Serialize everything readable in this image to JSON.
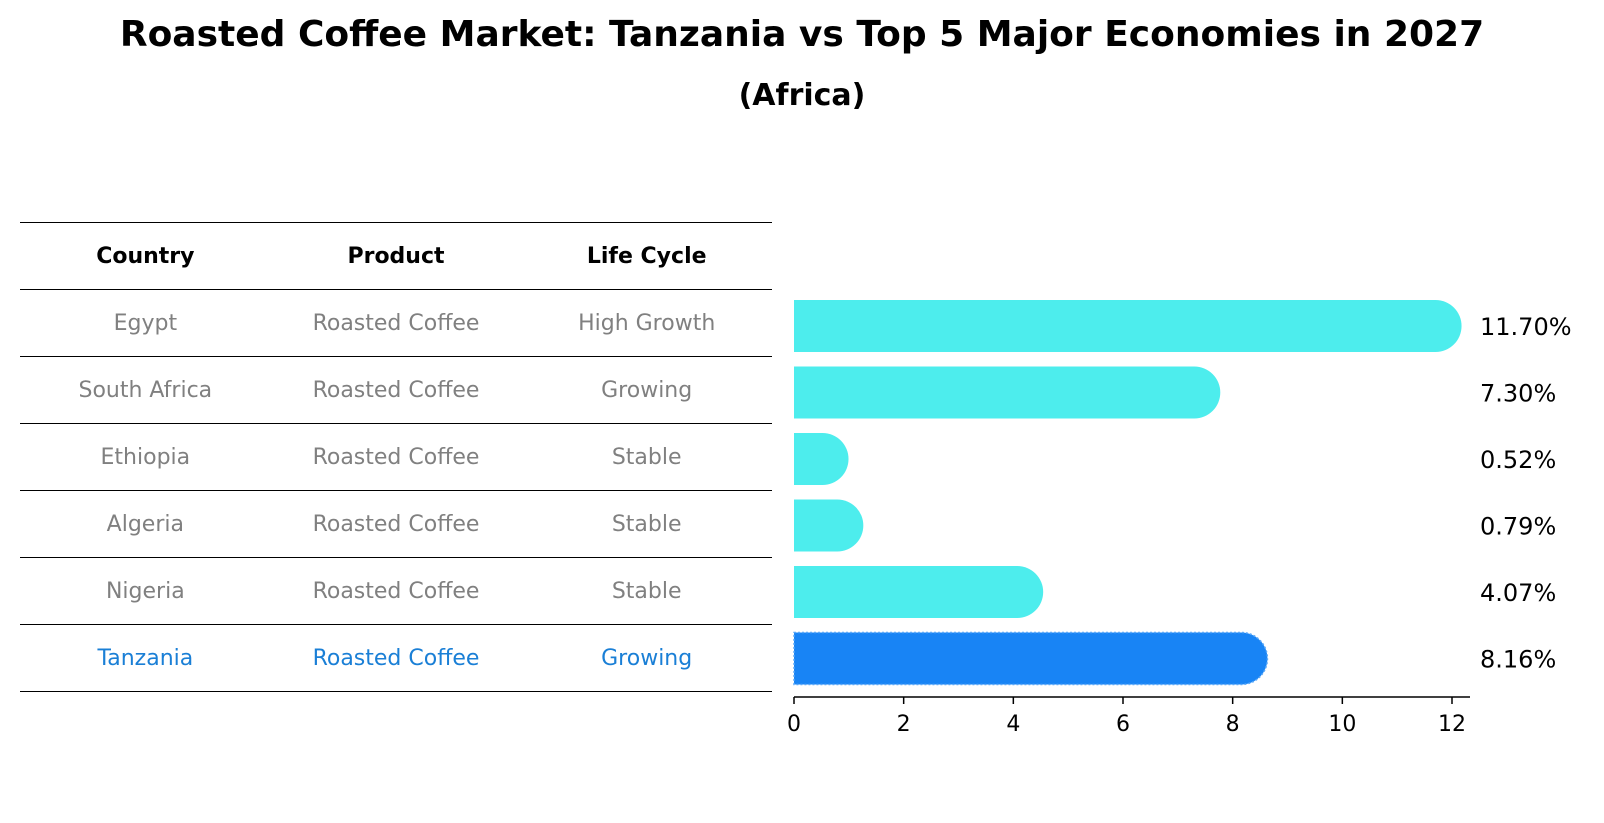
{
  "header": {
    "title": "Roasted Coffee Market: Tanzania vs Top 5 Major Economies in 2027",
    "subtitle": "(Africa)"
  },
  "table": {
    "columns": [
      "Country",
      "Product",
      "Life Cycle"
    ],
    "rows": [
      [
        "Egypt",
        "Roasted Coffee",
        "High Growth"
      ],
      [
        "South Africa",
        "Roasted Coffee",
        "Growing"
      ],
      [
        "Ethiopia",
        "Roasted Coffee",
        "Stable"
      ],
      [
        "Algeria",
        "Roasted Coffee",
        "Stable"
      ],
      [
        "Nigeria",
        "Roasted Coffee",
        "Stable"
      ],
      [
        "Tanzania",
        "Roasted Coffee",
        "Growing"
      ]
    ],
    "highlight_row": 5
  },
  "colors": {
    "bar": "#4deded",
    "highlight_bar": "#1884f5",
    "highlight_text": "#1a7fd6",
    "muted_text": "#808080"
  },
  "chart_data": {
    "type": "bar",
    "orientation": "horizontal",
    "categories": [
      "Egypt",
      "South Africa",
      "Ethiopia",
      "Algeria",
      "Nigeria",
      "Tanzania"
    ],
    "values": [
      11.7,
      7.3,
      0.52,
      0.79,
      4.07,
      8.16
    ],
    "value_labels": [
      "11.70%",
      "7.30%",
      "0.52%",
      "0.79%",
      "4.07%",
      "8.16%"
    ],
    "highlight_index": 5,
    "xlim": [
      0,
      12.3
    ],
    "xticks": [
      0,
      2,
      4,
      6,
      8,
      10,
      12
    ],
    "grid": false
  }
}
